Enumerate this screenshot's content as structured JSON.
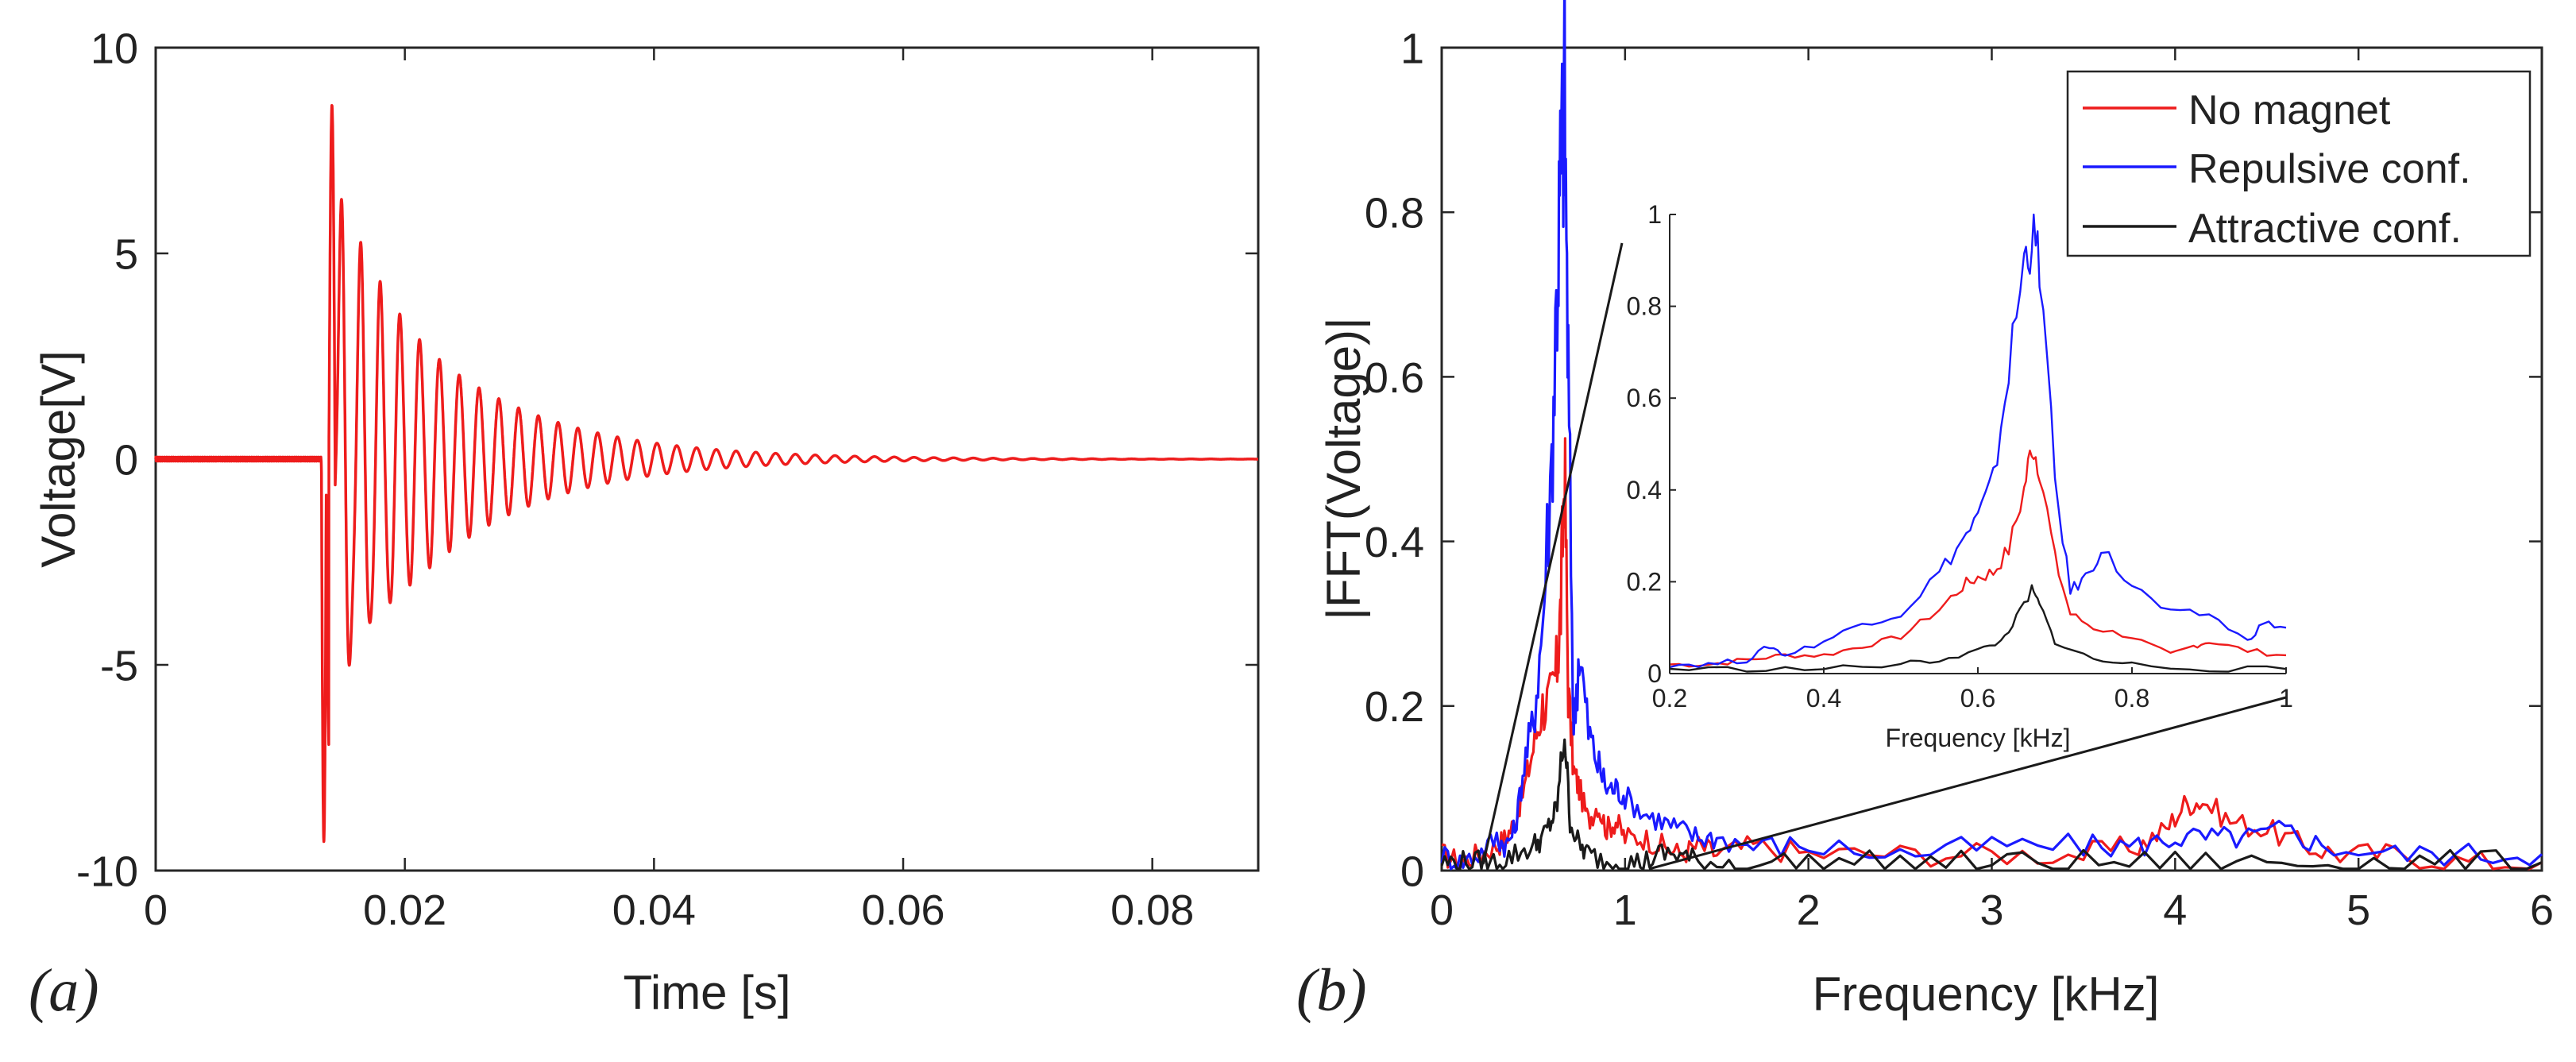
{
  "colors": {
    "red": "#ee1c1c",
    "blue": "#1a1aff",
    "black": "#1a1a1a",
    "axis": "#262626"
  },
  "chart_data": [
    {
      "id": "a",
      "type": "line",
      "panel_label": "(a)",
      "title": "",
      "xlabel": "Time [s]",
      "ylabel": "Voltage[V]",
      "xlim": [
        0,
        0.0885
      ],
      "ylim": [
        -10,
        10
      ],
      "xticks": [
        0,
        0.02,
        0.04,
        0.06,
        0.08
      ],
      "xticklabels": [
        "0",
        "0.02",
        "0.04",
        "0.06",
        "0.08"
      ],
      "yticks": [
        -10,
        -5,
        0,
        5,
        10
      ],
      "yticklabels": [
        "-10",
        "-5",
        "0",
        "5",
        "10"
      ],
      "grid": false,
      "signal": {
        "name": "Voltage",
        "color": "red",
        "onset": 0.0133,
        "frequency_hz": 630,
        "decay_tau_s": 0.0095,
        "initial_positive_peak": 8.6,
        "initial_negative_peak": -9.3,
        "baseline": 0
      }
    },
    {
      "id": "b",
      "type": "line",
      "panel_label": "(b)",
      "title": "",
      "xlabel": "Frequency [kHz]",
      "ylabel": "|FFT(Voltage)|",
      "xlim": [
        0,
        6
      ],
      "ylim": [
        0,
        1
      ],
      "xticks": [
        0,
        1,
        2,
        3,
        4,
        5,
        6
      ],
      "xticklabels": [
        "0",
        "1",
        "2",
        "3",
        "4",
        "5",
        "6"
      ],
      "yticks": [
        0,
        0.2,
        0.4,
        0.6,
        0.8,
        1
      ],
      "yticklabels": [
        "0",
        "0.2",
        "0.4",
        "0.6",
        "0.8",
        "1"
      ],
      "grid": false,
      "legend": {
        "position": "top-right"
      },
      "series": [
        {
          "name": "No magnet",
          "color": "red",
          "x": [
            0,
            0.1,
            0.2,
            0.3,
            0.35,
            0.4,
            0.45,
            0.5,
            0.55,
            0.6,
            0.63,
            0.65,
            0.67,
            0.69,
            0.72,
            0.75,
            0.8,
            0.85,
            0.9,
            0.95,
            1.0,
            1.1,
            1.2,
            1.3,
            1.4,
            1.5,
            1.7,
            2.0,
            2.5,
            3.0,
            3.5,
            3.8,
            3.95,
            4.05,
            4.15,
            4.3,
            4.5,
            4.7,
            4.9,
            5.2,
            5.6,
            6.0
          ],
          "y": [
            0.02,
            0.01,
            0.02,
            0.03,
            0.04,
            0.06,
            0.1,
            0.15,
            0.2,
            0.21,
            0.25,
            0.32,
            0.5,
            0.22,
            0.12,
            0.1,
            0.06,
            0.08,
            0.05,
            0.06,
            0.04,
            0.04,
            0.03,
            0.02,
            0.03,
            0.02,
            0.03,
            0.02,
            0.02,
            0.02,
            0.02,
            0.03,
            0.05,
            0.08,
            0.085,
            0.06,
            0.05,
            0.03,
            0.02,
            0.02,
            0.01,
            0.01
          ]
        },
        {
          "name": "Repulsive conf.",
          "color": "blue",
          "x": [
            0,
            0.1,
            0.2,
            0.3,
            0.35,
            0.4,
            0.45,
            0.5,
            0.55,
            0.6,
            0.63,
            0.65,
            0.67,
            0.69,
            0.72,
            0.75,
            0.8,
            0.85,
            0.9,
            0.95,
            1.0,
            1.1,
            1.2,
            1.3,
            1.4,
            1.5,
            1.7,
            2.0,
            2.5,
            3.0,
            3.5,
            3.8,
            4.0,
            4.2,
            4.4,
            4.6,
            4.8,
            5.2,
            5.6,
            6.0
          ],
          "y": [
            0.02,
            0.01,
            0.02,
            0.04,
            0.03,
            0.05,
            0.13,
            0.18,
            0.3,
            0.5,
            0.72,
            0.85,
            0.95,
            0.6,
            0.17,
            0.27,
            0.17,
            0.13,
            0.1,
            0.1,
            0.09,
            0.07,
            0.06,
            0.05,
            0.04,
            0.04,
            0.03,
            0.03,
            0.02,
            0.03,
            0.03,
            0.03,
            0.04,
            0.04,
            0.04,
            0.05,
            0.03,
            0.02,
            0.02,
            0.02
          ]
        },
        {
          "name": "Attractive conf.",
          "color": "black",
          "x": [
            0,
            0.1,
            0.2,
            0.3,
            0.4,
            0.5,
            0.55,
            0.6,
            0.63,
            0.67,
            0.7,
            0.75,
            0.8,
            0.9,
            1.0,
            1.1,
            1.2,
            1.3,
            1.4,
            1.6,
            2.0,
            2.5,
            3.0,
            3.5,
            4.0,
            4.5,
            5.0,
            5.5,
            6.0
          ],
          "y": [
            0.01,
            0.01,
            0.01,
            0.01,
            0.02,
            0.03,
            0.04,
            0.06,
            0.08,
            0.17,
            0.06,
            0.03,
            0.02,
            0.01,
            0.01,
            0.01,
            0.02,
            0.02,
            0.01,
            0.01,
            0.01,
            0.01,
            0.01,
            0.01,
            0.01,
            0.01,
            0.01,
            0.01,
            0.01
          ]
        }
      ],
      "inset": {
        "xlabel": "Frequency [kHz]",
        "xlim": [
          0.2,
          1
        ],
        "ylim": [
          0,
          1
        ],
        "xticks": [
          0.2,
          0.4,
          0.6,
          0.8,
          1
        ],
        "xticklabels": [
          "0.2",
          "0.4",
          "0.6",
          "0.8",
          "1"
        ],
        "yticks": [
          0,
          0.2,
          0.4,
          0.6,
          0.8,
          1
        ],
        "yticklabels": [
          "0",
          "0.2",
          "0.4",
          "0.6",
          "0.8",
          "1"
        ],
        "zoom_from_x": [
          0.2,
          1
        ],
        "series": [
          {
            "name": "No magnet",
            "color": "red",
            "x": [
              0.2,
              0.25,
              0.3,
              0.35,
              0.4,
              0.45,
              0.5,
              0.55,
              0.58,
              0.6,
              0.62,
              0.64,
              0.66,
              0.67,
              0.68,
              0.7,
              0.72,
              0.75,
              0.8,
              0.85,
              0.88,
              0.9,
              0.95,
              1.0
            ],
            "y": [
              0.02,
              0.02,
              0.03,
              0.04,
              0.04,
              0.06,
              0.08,
              0.14,
              0.19,
              0.21,
              0.22,
              0.27,
              0.4,
              0.5,
              0.45,
              0.25,
              0.13,
              0.1,
              0.08,
              0.04,
              0.06,
              0.07,
              0.05,
              0.04
            ]
          },
          {
            "name": "Repulsive conf.",
            "color": "blue",
            "x": [
              0.2,
              0.25,
              0.3,
              0.33,
              0.35,
              0.4,
              0.45,
              0.5,
              0.55,
              0.58,
              0.6,
              0.62,
              0.64,
              0.66,
              0.67,
              0.68,
              0.7,
              0.72,
              0.74,
              0.76,
              0.8,
              0.85,
              0.9,
              0.95,
              0.97,
              1.0
            ],
            "y": [
              0.02,
              0.02,
              0.03,
              0.06,
              0.04,
              0.07,
              0.11,
              0.13,
              0.22,
              0.29,
              0.34,
              0.42,
              0.66,
              0.9,
              0.95,
              0.9,
              0.42,
              0.18,
              0.21,
              0.27,
              0.19,
              0.13,
              0.13,
              0.07,
              0.11,
              0.1
            ]
          },
          {
            "name": "Attractive conf.",
            "color": "black",
            "x": [
              0.2,
              0.3,
              0.4,
              0.5,
              0.55,
              0.6,
              0.63,
              0.65,
              0.67,
              0.68,
              0.7,
              0.75,
              0.8,
              0.9,
              1.0
            ],
            "y": [
              0.01,
              0.01,
              0.01,
              0.02,
              0.03,
              0.05,
              0.07,
              0.12,
              0.18,
              0.15,
              0.07,
              0.03,
              0.02,
              0.01,
              0.01
            ]
          }
        ]
      }
    }
  ]
}
